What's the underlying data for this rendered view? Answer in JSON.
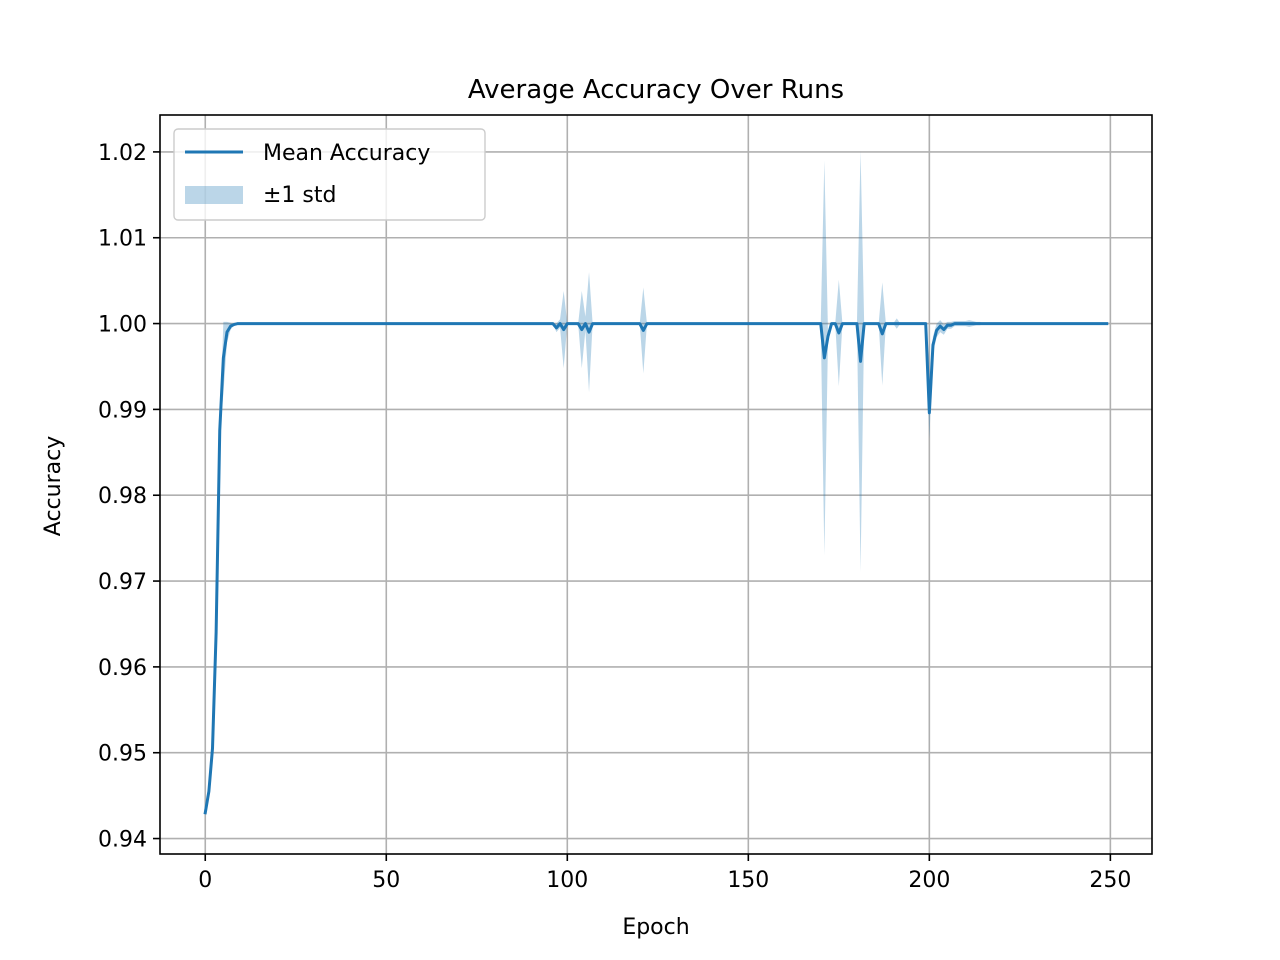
{
  "chart_data": {
    "type": "line",
    "title": "Average Accuracy Over Runs",
    "xlabel": "Epoch",
    "ylabel": "Accuracy",
    "xlim": [
      -12.5,
      261.5
    ],
    "ylim": [
      0.9382,
      1.0243
    ],
    "xticks": [
      0,
      50,
      100,
      150,
      200,
      250
    ],
    "xtick_labels": [
      "0",
      "50",
      "100",
      "150",
      "200",
      "250"
    ],
    "yticks": [
      0.94,
      0.95,
      0.96,
      0.97,
      0.98,
      0.99,
      1.0,
      1.01,
      1.02
    ],
    "ytick_labels": [
      "0.94",
      "0.95",
      "0.96",
      "0.97",
      "0.98",
      "0.99",
      "1.00",
      "1.01",
      "1.02"
    ],
    "grid": true,
    "legend_position": "upper-left",
    "series": [
      {
        "name": "Mean Accuracy",
        "kind": "line",
        "color": "#1f77b4",
        "x_start": 0,
        "x_end": 249,
        "default_value": 1.0,
        "points": [
          [
            0,
            0.943
          ],
          [
            1,
            0.9455
          ],
          [
            2,
            0.9505
          ],
          [
            3,
            0.964
          ],
          [
            4,
            0.9875
          ],
          [
            5,
            0.996
          ],
          [
            6,
            0.999
          ],
          [
            7,
            0.9997
          ],
          [
            8,
            0.9999
          ],
          [
            9,
            1.0
          ],
          [
            96,
            1.0
          ],
          [
            97,
            0.9995
          ],
          [
            98,
            1.0
          ],
          [
            99,
            0.9993
          ],
          [
            100,
            1.0
          ],
          [
            103,
            1.0
          ],
          [
            104,
            0.9993
          ],
          [
            105,
            1.0
          ],
          [
            106,
            0.999
          ],
          [
            107,
            1.0
          ],
          [
            120,
            1.0
          ],
          [
            121,
            0.9992
          ],
          [
            122,
            1.0
          ],
          [
            170,
            1.0
          ],
          [
            171,
            0.996
          ],
          [
            172,
            0.9985
          ],
          [
            173,
            1.0
          ],
          [
            174,
            1.0
          ],
          [
            175,
            0.9989
          ],
          [
            176,
            1.0
          ],
          [
            180,
            1.0
          ],
          [
            181,
            0.9956
          ],
          [
            182,
            1.0
          ],
          [
            186,
            1.0
          ],
          [
            187,
            0.9988
          ],
          [
            188,
            1.0
          ],
          [
            199,
            1.0
          ],
          [
            200,
            0.9896
          ],
          [
            201,
            0.9975
          ],
          [
            202,
            0.9992
          ],
          [
            203,
            0.9997
          ],
          [
            204,
            0.9993
          ],
          [
            205,
            0.9998
          ],
          [
            206,
            0.9998
          ],
          [
            207,
            1.0
          ]
        ]
      },
      {
        "name": "±1 std",
        "kind": "band",
        "color": "#1f77b4",
        "opacity": 0.3,
        "x_start": 0,
        "x_end": 249,
        "default_std": 0,
        "std_points": [
          [
            4,
            0.0
          ],
          [
            5,
            0.0042
          ],
          [
            6,
            0.0012
          ],
          [
            7,
            0.0004
          ],
          [
            8,
            0.0001
          ],
          [
            9,
            0.0
          ],
          [
            96,
            0.0
          ],
          [
            97,
            0.0005
          ],
          [
            98,
            0.0005
          ],
          [
            99,
            0.0045
          ],
          [
            100,
            0.0
          ],
          [
            103,
            0.0
          ],
          [
            104,
            0.0045
          ],
          [
            105,
            0.0008
          ],
          [
            106,
            0.007
          ],
          [
            107,
            0.0
          ],
          [
            120,
            0.0
          ],
          [
            121,
            0.005
          ],
          [
            122,
            0.0
          ],
          [
            170,
            0.0
          ],
          [
            171,
            0.023
          ],
          [
            172,
            0.0006
          ],
          [
            173,
            0.0
          ],
          [
            174,
            0.0
          ],
          [
            175,
            0.0062
          ],
          [
            176,
            0.0
          ],
          [
            180,
            0.0
          ],
          [
            181,
            0.0245
          ],
          [
            182,
            0.0
          ],
          [
            186,
            0.0
          ],
          [
            187,
            0.006
          ],
          [
            188,
            0.0
          ],
          [
            190,
            0.0
          ],
          [
            191,
            0.0006
          ],
          [
            192,
            0.0
          ],
          [
            199,
            0.0
          ],
          [
            200,
            0.003
          ],
          [
            201,
            0.001
          ],
          [
            202,
            0.0008
          ],
          [
            203,
            0.0007
          ],
          [
            204,
            0.0006
          ],
          [
            205,
            0.0004
          ],
          [
            206,
            0.0004
          ],
          [
            207,
            0.0003
          ],
          [
            208,
            0.0003
          ],
          [
            209,
            0.0003
          ],
          [
            210,
            0.0003
          ],
          [
            211,
            0.0004
          ],
          [
            212,
            0.0003
          ],
          [
            213,
            0.0002
          ],
          [
            214,
            0.0002
          ],
          [
            215,
            0.0
          ],
          [
            216,
            0.0
          ]
        ]
      }
    ]
  }
}
